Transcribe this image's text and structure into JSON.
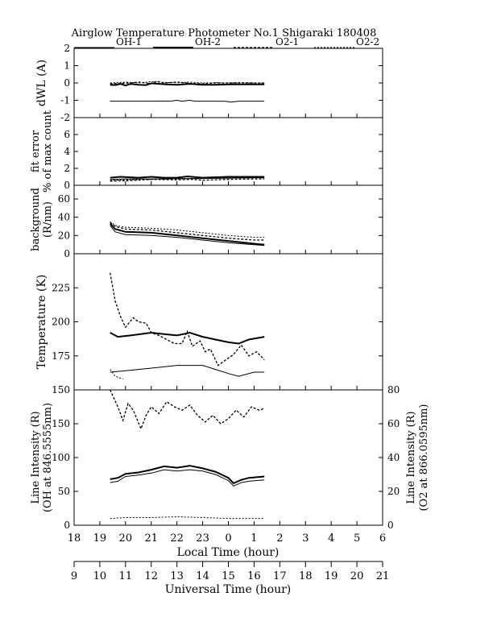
{
  "chart_data": {
    "type": "line",
    "title": "Airglow Temperature Photometer No.1  Shigaraki   180408",
    "legend": [
      {
        "key": "oh1",
        "label": "OH-1",
        "style": "solid-thin"
      },
      {
        "key": "oh2",
        "label": "OH-2",
        "style": "solid-thick"
      },
      {
        "key": "o21",
        "label": "O2-1",
        "style": "dashed"
      },
      {
        "key": "o22",
        "label": "O2-2",
        "style": "dashed-thin"
      }
    ],
    "xaxis_local": {
      "label": "Local Time (hour)",
      "ticks": [
        "18",
        "19",
        "20",
        "21",
        "22",
        "23",
        "0",
        "1",
        "2",
        "3",
        "4",
        "5",
        "6"
      ],
      "range": [
        18,
        30
      ]
    },
    "xaxis_ut": {
      "label": "Universal Time (hour)",
      "ticks": [
        "9",
        "10",
        "11",
        "12",
        "13",
        "14",
        "15",
        "16",
        "17",
        "18",
        "19",
        "20",
        "21"
      ],
      "range": [
        9,
        21
      ]
    },
    "panels": [
      {
        "id": "dwl",
        "ylabel": [
          "dWL (A)"
        ],
        "ylim": [
          -2,
          2
        ],
        "yticks": [
          "2",
          "1",
          "0",
          "-1",
          "-2"
        ],
        "series": {
          "oh1": [
            [
              19.4,
              -1.05
            ],
            [
              20,
              -1.05
            ],
            [
              21,
              -1.05
            ],
            [
              21.8,
              -1.04
            ],
            [
              22,
              -1.0
            ],
            [
              22.2,
              -1.05
            ],
            [
              22.5,
              -1.0
            ],
            [
              22.7,
              -1.05
            ],
            [
              23.5,
              -1.05
            ],
            [
              23.9,
              -1.06
            ],
            [
              24.1,
              -1.1
            ],
            [
              24.4,
              -1.05
            ],
            [
              25,
              -1.05
            ],
            [
              25.4,
              -1.05
            ]
          ],
          "oh2": [
            [
              19.4,
              -0.1
            ],
            [
              19.6,
              -0.12
            ],
            [
              19.8,
              -0.05
            ],
            [
              20,
              -0.15
            ],
            [
              20.2,
              -0.05
            ],
            [
              20.5,
              -0.1
            ],
            [
              20.8,
              -0.12
            ],
            [
              21.0,
              -0.02
            ],
            [
              21.3,
              -0.05
            ],
            [
              21.6,
              -0.08
            ],
            [
              22,
              -0.1
            ],
            [
              22.5,
              -0.05
            ],
            [
              23,
              -0.1
            ],
            [
              23.5,
              -0.1
            ],
            [
              24,
              -0.08
            ],
            [
              24.5,
              -0.08
            ],
            [
              25,
              -0.08
            ],
            [
              25.4,
              -0.08
            ]
          ],
          "o21": [
            [
              19.4,
              -0.05
            ],
            [
              19.8,
              -0.02
            ],
            [
              20.2,
              0.0
            ],
            [
              20.5,
              0.05
            ],
            [
              20.8,
              0.0
            ],
            [
              21.0,
              -0.05
            ],
            [
              21.2,
              0.1
            ],
            [
              21.5,
              0.0
            ],
            [
              22,
              0.05
            ],
            [
              22.5,
              -0.02
            ],
            [
              23,
              -0.05
            ],
            [
              23.5,
              0.0
            ],
            [
              24,
              0.0
            ],
            [
              24.5,
              0.02
            ],
            [
              25,
              0.0
            ],
            [
              25.4,
              0.0
            ]
          ],
          "o22": [
            [
              19.4,
              0.0
            ],
            [
              20,
              0.05
            ],
            [
              20.5,
              0.0
            ],
            [
              21,
              0.08
            ],
            [
              21.5,
              0.03
            ],
            [
              22,
              0.02
            ],
            [
              22.5,
              0.05
            ],
            [
              23,
              0.0
            ],
            [
              23.5,
              0.02
            ],
            [
              24,
              0.0
            ],
            [
              24.5,
              0.0
            ],
            [
              25,
              0.0
            ],
            [
              25.4,
              0.0
            ]
          ]
        }
      },
      {
        "id": "fit",
        "ylabel": [
          "fit error",
          "% of max count"
        ],
        "ylim": [
          0,
          8
        ],
        "yticks": [
          "6",
          "4",
          "2",
          "0"
        ],
        "series": {
          "oh1": [
            [
              19.4,
              0.7
            ],
            [
              20,
              0.75
            ],
            [
              21,
              0.75
            ],
            [
              22,
              0.8
            ],
            [
              23,
              0.8
            ],
            [
              24,
              0.85
            ],
            [
              25,
              0.9
            ],
            [
              25.4,
              0.9
            ]
          ],
          "oh2": [
            [
              19.4,
              0.9
            ],
            [
              19.8,
              1.0
            ],
            [
              20.5,
              0.9
            ],
            [
              21,
              1.0
            ],
            [
              21.5,
              0.9
            ],
            [
              22,
              0.9
            ],
            [
              22.4,
              1.05
            ],
            [
              23,
              0.9
            ],
            [
              24,
              1.0
            ],
            [
              25,
              1.0
            ],
            [
              25.4,
              1.0
            ]
          ],
          "o21": [
            [
              19.4,
              0.5
            ],
            [
              20,
              0.55
            ],
            [
              20.5,
              0.6
            ],
            [
              21,
              0.7
            ],
            [
              22,
              0.65
            ],
            [
              22.6,
              0.7
            ],
            [
              23,
              0.6
            ],
            [
              24,
              0.7
            ],
            [
              25,
              0.75
            ],
            [
              25.4,
              0.75
            ]
          ],
          "o22": [
            [
              19.4,
              0.6
            ],
            [
              20,
              0.65
            ],
            [
              21,
              0.7
            ],
            [
              22,
              0.75
            ],
            [
              23,
              0.8
            ],
            [
              24,
              0.85
            ],
            [
              25,
              0.9
            ],
            [
              25.4,
              0.9
            ]
          ]
        }
      },
      {
        "id": "bg",
        "ylabel": [
          "background",
          "(R/nm)"
        ],
        "ylim": [
          0,
          75
        ],
        "yticks": [
          "60",
          "40",
          "20",
          "0"
        ],
        "series": {
          "oh1": [
            [
              19.4,
              31
            ],
            [
              19.6,
              24
            ],
            [
              20,
              21
            ],
            [
              21,
              20
            ],
            [
              22,
              18
            ],
            [
              23,
              15
            ],
            [
              24,
              12
            ],
            [
              25,
              10
            ],
            [
              25.4,
              9
            ]
          ],
          "oh2": [
            [
              19.4,
              33
            ],
            [
              19.6,
              27
            ],
            [
              20,
              24
            ],
            [
              21,
              23
            ],
            [
              22,
              20
            ],
            [
              23,
              17
            ],
            [
              24,
              14
            ],
            [
              25,
              11
            ],
            [
              25.4,
              10
            ]
          ],
          "o21": [
            [
              19.4,
              34
            ],
            [
              19.6,
              30
            ],
            [
              20,
              27
            ],
            [
              21,
              26
            ],
            [
              22,
              23
            ],
            [
              23,
              20
            ],
            [
              24,
              17
            ],
            [
              25,
              15
            ],
            [
              25.4,
              15
            ]
          ],
          "o22": [
            [
              19.4,
              35
            ],
            [
              19.6,
              31
            ],
            [
              20,
              29
            ],
            [
              21,
              28
            ],
            [
              22,
              26
            ],
            [
              23,
              23
            ],
            [
              24,
              20
            ],
            [
              25,
              18
            ],
            [
              25.4,
              18
            ]
          ]
        }
      },
      {
        "id": "temp",
        "ylabel": [
          "Temperature (K)"
        ],
        "ylim": [
          150,
          250
        ],
        "yticks": [
          "225",
          "200",
          "175",
          "150"
        ],
        "series": {
          "oh1": [
            [
              19.4,
              163
            ],
            [
              20,
              164
            ],
            [
              21,
              166
            ],
            [
              22,
              168
            ],
            [
              23,
              168
            ],
            [
              23.5,
              165
            ],
            [
              24,
              162
            ],
            [
              24.4,
              160
            ],
            [
              25,
              163
            ],
            [
              25.4,
              163
            ]
          ],
          "oh2": [
            [
              19.4,
              192
            ],
            [
              19.7,
              189
            ],
            [
              20.2,
              190
            ],
            [
              21,
              192
            ],
            [
              21.5,
              191
            ],
            [
              22,
              190
            ],
            [
              22.5,
              192
            ],
            [
              23,
              189
            ],
            [
              23.5,
              187
            ],
            [
              24,
              185
            ],
            [
              24.4,
              184
            ],
            [
              24.8,
              187
            ],
            [
              25.4,
              189
            ]
          ],
          "o21": [
            [
              19.4,
              236
            ],
            [
              19.6,
              215
            ],
            [
              19.8,
              204
            ],
            [
              20,
              196
            ],
            [
              20.3,
              203
            ],
            [
              20.5,
              200
            ],
            [
              20.8,
              199
            ],
            [
              21,
              192
            ],
            [
              21.3,
              190
            ],
            [
              21.6,
              187
            ],
            [
              21.9,
              184
            ],
            [
              22.2,
              184
            ],
            [
              22.4,
              193
            ],
            [
              22.6,
              182
            ],
            [
              22.9,
              186
            ],
            [
              23.1,
              178
            ],
            [
              23.3,
              180
            ],
            [
              23.6,
              168
            ],
            [
              23.9,
              172
            ],
            [
              24.2,
              176
            ],
            [
              24.5,
              183
            ],
            [
              24.8,
              175
            ],
            [
              25.1,
              178
            ],
            [
              25.4,
              172
            ]
          ],
          "o22": [
            [
              19.4,
              165
            ],
            [
              19.6,
              160
            ],
            [
              19.9,
              158
            ]
          ]
        }
      },
      {
        "id": "intensity",
        "ylabel": [
          "Line Intensity (R)",
          "(OH at 846.5555nm)"
        ],
        "ylabel_right": [
          "Line Intensity (R)",
          "(O2 at 866.0595nm)"
        ],
        "ylim": [
          0,
          200
        ],
        "yticks": [
          "150",
          "100",
          "50",
          "0"
        ],
        "ylim_right": [
          0,
          80
        ],
        "yticks_right": [
          "80",
          "60",
          "40",
          "20",
          "0"
        ],
        "series": {
          "oh1": [
            [
              19.4,
              63
            ],
            [
              19.7,
              65
            ],
            [
              20,
              72
            ],
            [
              20.5,
              74
            ],
            [
              21,
              77
            ],
            [
              21.5,
              82
            ],
            [
              22,
              80
            ],
            [
              22.5,
              82
            ],
            [
              23,
              80
            ],
            [
              23.5,
              75
            ],
            [
              24,
              66
            ],
            [
              24.2,
              58
            ],
            [
              24.5,
              63
            ],
            [
              24.8,
              65
            ],
            [
              25.4,
              67
            ]
          ],
          "oh2": [
            [
              19.4,
              68
            ],
            [
              19.7,
              70
            ],
            [
              20,
              76
            ],
            [
              20.5,
              78
            ],
            [
              21,
              82
            ],
            [
              21.5,
              87
            ],
            [
              22,
              85
            ],
            [
              22.5,
              88
            ],
            [
              23,
              84
            ],
            [
              23.5,
              79
            ],
            [
              24,
              70
            ],
            [
              24.2,
              62
            ],
            [
              24.5,
              67
            ],
            [
              24.8,
              70
            ],
            [
              25.4,
              72
            ]
          ],
          "o21_right": [
            [
              19.4,
              80
            ],
            [
              19.7,
              70
            ],
            [
              19.9,
              62
            ],
            [
              20.1,
              72
            ],
            [
              20.3,
              68
            ],
            [
              20.6,
              57
            ],
            [
              20.8,
              65
            ],
            [
              21,
              70
            ],
            [
              21.3,
              66
            ],
            [
              21.6,
              73
            ],
            [
              21.9,
              70
            ],
            [
              22.2,
              68
            ],
            [
              22.5,
              71
            ],
            [
              22.8,
              65
            ],
            [
              23.1,
              61
            ],
            [
              23.4,
              65
            ],
            [
              23.7,
              60
            ],
            [
              24,
              63
            ],
            [
              24.3,
              68
            ],
            [
              24.6,
              64
            ],
            [
              24.9,
              70
            ],
            [
              25.2,
              68
            ],
            [
              25.4,
              69
            ]
          ],
          "o22_right": [
            [
              19.4,
              4
            ],
            [
              20,
              4.5
            ],
            [
              21,
              4.5
            ],
            [
              22,
              5
            ],
            [
              23,
              4.5
            ],
            [
              24,
              4
            ],
            [
              25,
              4
            ],
            [
              25.4,
              4
            ]
          ]
        }
      }
    ]
  }
}
